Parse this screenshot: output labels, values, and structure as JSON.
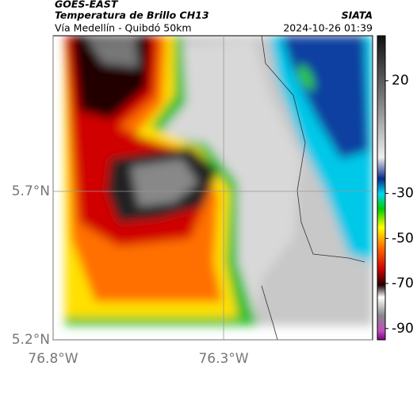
{
  "header": {
    "title": "GOES-EAST",
    "subtitle": "Temperatura de Brillo CH13",
    "route": "Vía Medellín - Quibdó 50km",
    "source": "SIATA",
    "datetime": "2024-10-26 01:39"
  },
  "map": {
    "xlim": [
      -76.8,
      -75.863
    ],
    "ylim": [
      5.2,
      6.224
    ],
    "xticks": [
      {
        "value": -76.8,
        "label": "76.8°W"
      },
      {
        "value": -76.3,
        "label": "76.3°W"
      }
    ],
    "yticks": [
      {
        "value": 5.2,
        "label": "5.2°N"
      },
      {
        "value": 5.7,
        "label": "5.7°N"
      }
    ]
  },
  "colorbar": {
    "lim": [
      40,
      -95
    ],
    "ticks": [
      20,
      -30,
      -50,
      -70,
      -90
    ]
  }
}
